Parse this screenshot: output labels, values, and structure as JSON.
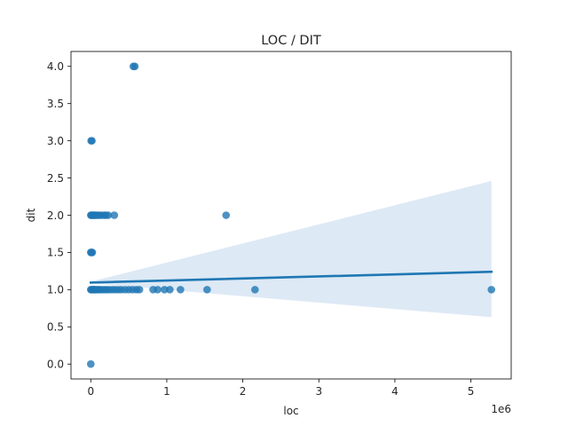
{
  "chart_data": {
    "type": "scatter",
    "title": "LOC / DIT",
    "xlabel": "loc",
    "ylabel": "dit",
    "x_offset_label": "1e6",
    "xlim": [
      -0.26,
      5.53
    ],
    "ylim": [
      -0.2,
      4.2
    ],
    "x_ticks": [
      0,
      1,
      2,
      3,
      4,
      5
    ],
    "y_ticks": [
      0.0,
      0.5,
      1.0,
      1.5,
      2.0,
      2.5,
      3.0,
      3.5,
      4.0
    ],
    "x_tick_labels": [
      "0",
      "1",
      "2",
      "3",
      "4",
      "5"
    ],
    "y_tick_labels": [
      "0.0",
      "0.5",
      "1.0",
      "1.5",
      "2.0",
      "2.5",
      "3.0",
      "3.5",
      "4.0"
    ],
    "grid": false,
    "legend": "none",
    "colors": {
      "point": "#1f77b4",
      "line": "#1f77b4",
      "band": "#c6dbef"
    },
    "series": [
      {
        "points": [
          [
            0.0,
            0.0
          ],
          [
            0.005,
            3.0
          ],
          [
            0.015,
            3.0
          ],
          [
            0.56,
            4.0
          ],
          [
            0.58,
            4.0
          ],
          [
            0.0,
            1.5
          ],
          [
            0.01,
            1.5
          ],
          [
            0.02,
            1.5
          ],
          [
            0.0,
            2.0
          ],
          [
            0.01,
            2.0
          ],
          [
            0.02,
            2.0
          ],
          [
            0.03,
            2.0
          ],
          [
            0.04,
            2.0
          ],
          [
            0.05,
            2.0
          ],
          [
            0.06,
            2.0
          ],
          [
            0.08,
            2.0
          ],
          [
            0.1,
            2.0
          ],
          [
            0.12,
            2.0
          ],
          [
            0.15,
            2.0
          ],
          [
            0.18,
            2.0
          ],
          [
            0.2,
            2.0
          ],
          [
            0.23,
            2.0
          ],
          [
            0.31,
            2.0
          ],
          [
            1.78,
            2.0
          ],
          [
            0.0,
            1.0
          ],
          [
            0.01,
            1.0
          ],
          [
            0.02,
            1.0
          ],
          [
            0.03,
            1.0
          ],
          [
            0.04,
            1.0
          ],
          [
            0.05,
            1.0
          ],
          [
            0.06,
            1.0
          ],
          [
            0.08,
            1.0
          ],
          [
            0.1,
            1.0
          ],
          [
            0.12,
            1.0
          ],
          [
            0.15,
            1.0
          ],
          [
            0.18,
            1.0
          ],
          [
            0.21,
            1.0
          ],
          [
            0.24,
            1.0
          ],
          [
            0.28,
            1.0
          ],
          [
            0.32,
            1.0
          ],
          [
            0.36,
            1.0
          ],
          [
            0.4,
            1.0
          ],
          [
            0.45,
            1.0
          ],
          [
            0.5,
            1.0
          ],
          [
            0.55,
            1.0
          ],
          [
            0.6,
            1.0
          ],
          [
            0.64,
            1.0
          ],
          [
            0.82,
            1.0
          ],
          [
            0.88,
            1.0
          ],
          [
            0.97,
            1.0
          ],
          [
            1.04,
            1.0
          ],
          [
            1.18,
            1.0
          ],
          [
            1.53,
            1.0
          ],
          [
            2.16,
            1.0
          ],
          [
            5.27,
            1.0
          ]
        ]
      }
    ],
    "regression": {
      "x_start": 0.0,
      "x_end": 5.27,
      "y_start": 1.095,
      "y_end": 1.24,
      "ci_upper_end": 2.46,
      "ci_lower_end": 0.63,
      "ci_pivot_x": 0.05,
      "ci_pivot_y": 1.1
    }
  }
}
